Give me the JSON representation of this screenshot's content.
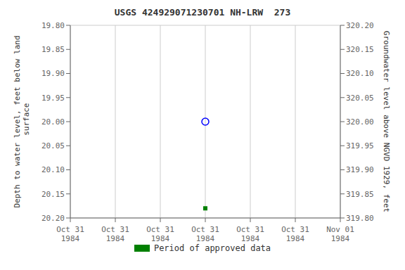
{
  "chart_data": {
    "type": "scatter",
    "title": "USGS 424929071230701 NH-LRW  273",
    "y_label": "Depth to water level, feet below land\n surface",
    "y2_label": "Groundwater level above NGVD 1929, feet",
    "categories": [
      "Oct 31\n1984",
      "Oct 31\n1984",
      "Oct 31\n1984",
      "Oct 31\n1984",
      "Oct 31\n1984",
      "Oct 31\n1984",
      "Nov 01\n1984"
    ],
    "series": [
      {
        "values": [
          null,
          null,
          null,
          20.0,
          null,
          null,
          null
        ],
        "color": "#0000ff",
        "marker": "open_circle"
      },
      {
        "name": "Period of approved data",
        "values": [
          null,
          null,
          null,
          20.18,
          null,
          null,
          null
        ],
        "color": "#008000",
        "marker": "square"
      }
    ],
    "ylim": [
      20.2,
      19.8
    ],
    "yticks": [
      {
        "value": 19.8,
        "label": "19.80"
      },
      {
        "value": 19.85,
        "label": "19.85"
      },
      {
        "value": 19.9,
        "label": "19.90"
      },
      {
        "value": 19.95,
        "label": "19.95"
      },
      {
        "value": 20.0,
        "label": "20.00"
      },
      {
        "value": 20.05,
        "label": "20.05"
      },
      {
        "value": 20.1,
        "label": "20.10"
      },
      {
        "value": 20.15,
        "label": "20.15"
      },
      {
        "value": 20.2,
        "label": "20.20"
      }
    ],
    "y2lim": [
      319.8,
      320.2
    ],
    "y2ticks": [
      {
        "value": 320.2,
        "label": "320.20"
      },
      {
        "value": 320.15,
        "label": "320.15"
      },
      {
        "value": 320.1,
        "label": "320.10"
      },
      {
        "value": 320.05,
        "label": "320.05"
      },
      {
        "value": 320.0,
        "label": "320.00"
      },
      {
        "value": 319.95,
        "label": "319.95"
      },
      {
        "value": 319.9,
        "label": "319.90"
      },
      {
        "value": 319.85,
        "label": "319.85"
      },
      {
        "value": 319.8,
        "label": "319.80"
      }
    ],
    "grid": true,
    "legend": "bottom"
  }
}
